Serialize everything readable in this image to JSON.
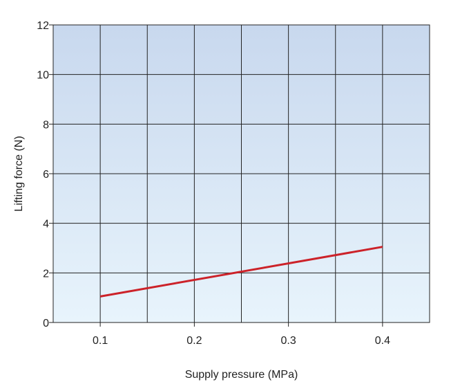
{
  "chart_data": {
    "type": "line",
    "title": "",
    "xlabel": "Supply pressure (MPa)",
    "ylabel": "Lifting force (N)",
    "xlim": [
      0.05,
      0.45
    ],
    "ylim": [
      0,
      12
    ],
    "x_ticks": [
      0.1,
      0.2,
      0.3,
      0.4
    ],
    "x_tick_labels": [
      "0.1",
      "0.2",
      "0.3",
      "0.4"
    ],
    "y_ticks": [
      0,
      2,
      4,
      6,
      8,
      10,
      12
    ],
    "y_tick_labels": [
      "0",
      "2",
      "4",
      "6",
      "8",
      "10",
      "12"
    ],
    "x_gridlines": [
      0.1,
      0.15,
      0.2,
      0.25,
      0.3,
      0.35,
      0.4
    ],
    "grid": true,
    "legend": "none",
    "series": [
      {
        "x": [
          0.1,
          0.4
        ],
        "values": [
          1.05,
          3.05
        ],
        "color": "#cc2229"
      }
    ],
    "background_gradient": [
      "#c8d8ee",
      "#e8f4fc"
    ],
    "grid_color": "#222222"
  }
}
